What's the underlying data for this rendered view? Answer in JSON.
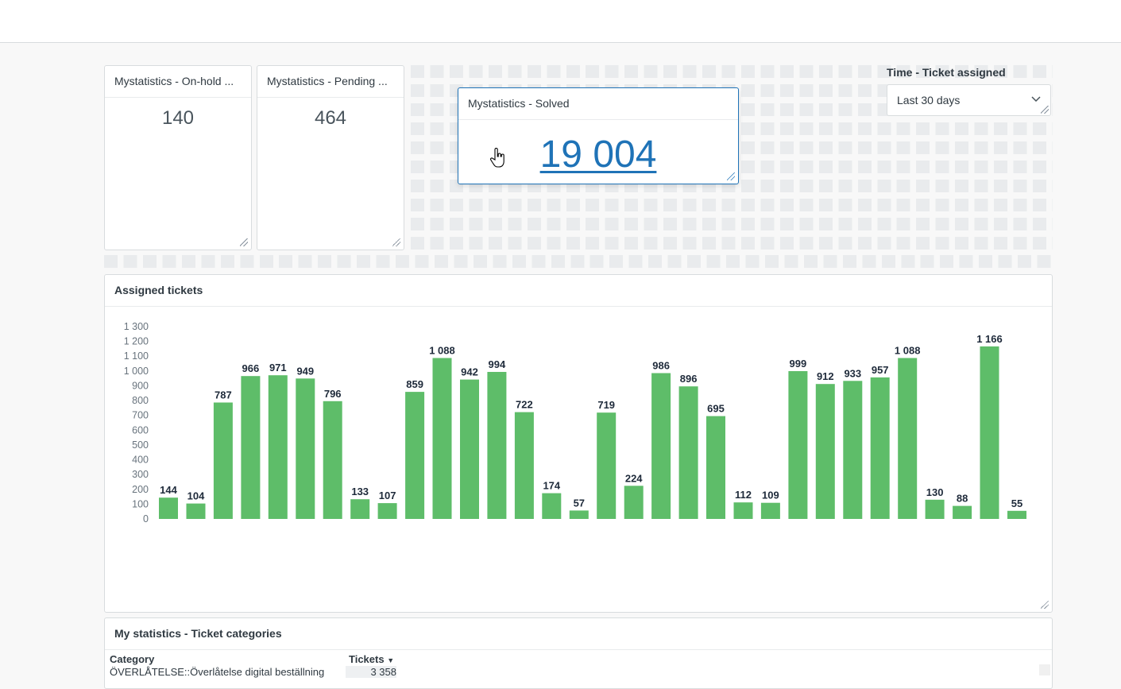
{
  "widgets": {
    "onhold": {
      "title": "Mystatistics - On-hold ...",
      "value": "140"
    },
    "pending": {
      "title": "Mystatistics - Pending ...",
      "value": "464"
    },
    "solved": {
      "title": "Mystatistics - Solved",
      "value": "19 004"
    }
  },
  "filter": {
    "label": "Time - Ticket assigned",
    "selected": "Last 30 days"
  },
  "assigned": {
    "title": "Assigned tickets"
  },
  "chart_data": {
    "type": "bar",
    "title": "Assigned tickets",
    "color": "#5ebd69",
    "ylim": [
      0,
      1300
    ],
    "yticks": [
      0,
      100,
      200,
      300,
      400,
      500,
      600,
      700,
      800,
      900,
      1000,
      1100,
      1200,
      1300
    ],
    "ytick_labels": [
      "0",
      "100",
      "200",
      "300",
      "400",
      "500",
      "600",
      "700",
      "800",
      "900",
      "1 000",
      "1 100",
      "1 200",
      "1 300"
    ],
    "values": [
      144,
      104,
      787,
      966,
      971,
      949,
      796,
      133,
      107,
      859,
      1088,
      942,
      994,
      722,
      174,
      57,
      719,
      224,
      986,
      896,
      695,
      112,
      109,
      999,
      912,
      933,
      957,
      1088,
      130,
      88,
      1166,
      55
    ],
    "labels": [
      "144",
      "104",
      "787",
      "966",
      "971",
      "949",
      "796",
      "133",
      "107",
      "859",
      "1 088",
      "942",
      "994",
      "722",
      "174",
      "57",
      "719",
      "224",
      "986",
      "896",
      "695",
      "112",
      "109",
      "999",
      "912",
      "933",
      "957",
      "1 088",
      "130",
      "88",
      "1 166",
      "55"
    ],
    "grid": false
  },
  "categories_table": {
    "title": "My statistics - Ticket categories",
    "columns": [
      "Category",
      "Tickets"
    ],
    "rows": [
      [
        "ÖVERLÅTELSE::Överlåtelse digital beställning",
        "3 358"
      ]
    ]
  }
}
